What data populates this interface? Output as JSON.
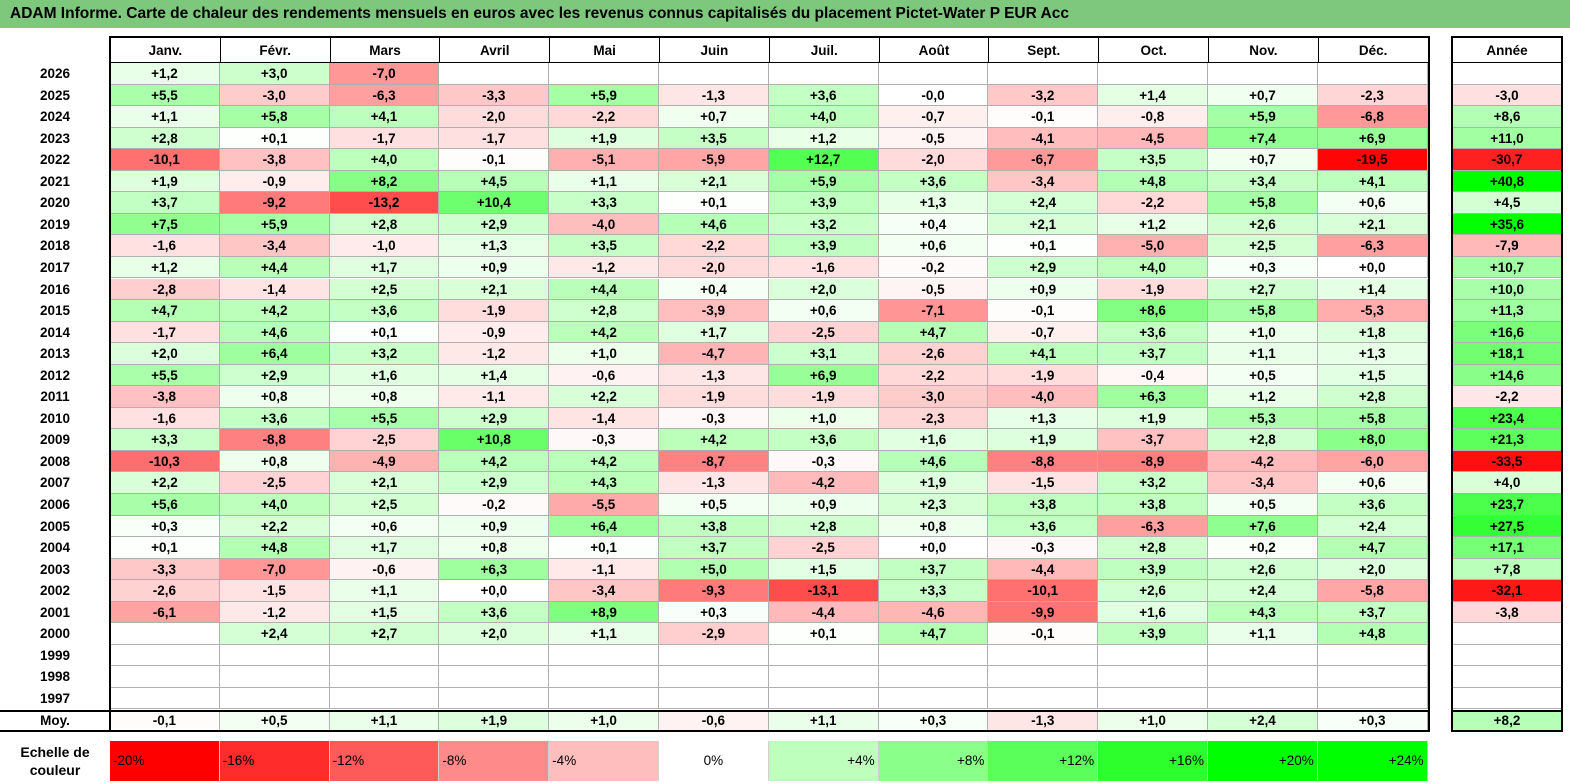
{
  "title": "ADAM Informe. Carte de chaleur des rendements mensuels en euros avec les revenus connus capitalisés du placement Pictet-Water P EUR Acc",
  "colors": {
    "title_bg": "#7dc87d",
    "negative_max": "#ff0000",
    "positive_max": "#00ff00",
    "neutral": "#ffffff"
  },
  "chart_data": {
    "type": "heatmap",
    "title": "ADAM Informe. Carte de chaleur des rendements mensuels en euros avec les revenus connus capitalisés du placement Pictet-Water P EUR Acc",
    "months": [
      "Janv.",
      "Févr.",
      "Mars",
      "Avril",
      "Mai",
      "Juin",
      "Juil.",
      "Août",
      "Sept.",
      "Oct.",
      "Nov.",
      "Déc."
    ],
    "annual_header": "Année",
    "avg_label": "Moy.",
    "scale_label": "Echelle de couleur",
    "rows": [
      {
        "year": "2026",
        "values": [
          "+1,2",
          "+3,0",
          "-7,0",
          "",
          "",
          "",
          "",
          "",
          "",
          "",
          "",
          ""
        ],
        "annual": ""
      },
      {
        "year": "2025",
        "values": [
          "+5,5",
          "-3,0",
          "-6,3",
          "-3,3",
          "+5,9",
          "-1,3",
          "+3,6",
          "-0,0",
          "-3,2",
          "+1,4",
          "+0,7",
          "-2,3"
        ],
        "annual": "-3,0"
      },
      {
        "year": "2024",
        "values": [
          "+1,1",
          "+5,8",
          "+4,1",
          "-2,0",
          "-2,2",
          "+0,7",
          "+4,0",
          "-0,7",
          "-0,1",
          "-0,8",
          "+5,9",
          "-6,8"
        ],
        "annual": "+8,6"
      },
      {
        "year": "2023",
        "values": [
          "+2,8",
          "+0,1",
          "-1,7",
          "-1,7",
          "+1,9",
          "+3,5",
          "+1,2",
          "-0,5",
          "-4,1",
          "-4,5",
          "+7,4",
          "+6,9"
        ],
        "annual": "+11,0"
      },
      {
        "year": "2022",
        "values": [
          "-10,1",
          "-3,8",
          "+4,0",
          "-0,1",
          "-5,1",
          "-5,9",
          "+12,7",
          "-2,0",
          "-6,7",
          "+3,5",
          "+0,7",
          "-19,5"
        ],
        "annual": "-30,7"
      },
      {
        "year": "2021",
        "values": [
          "+1,9",
          "-0,9",
          "+8,2",
          "+4,5",
          "+1,1",
          "+2,1",
          "+5,9",
          "+3,6",
          "-3,4",
          "+4,8",
          "+3,4",
          "+4,1"
        ],
        "annual": "+40,8"
      },
      {
        "year": "2020",
        "values": [
          "+3,7",
          "-9,2",
          "-13,2",
          "+10,4",
          "+3,3",
          "+0,1",
          "+3,9",
          "+1,3",
          "+2,4",
          "-2,2",
          "+5,8",
          "+0,6"
        ],
        "annual": "+4,5"
      },
      {
        "year": "2019",
        "values": [
          "+7,5",
          "+5,9",
          "+2,8",
          "+2,9",
          "-4,0",
          "+4,6",
          "+3,2",
          "+0,4",
          "+2,1",
          "+1,2",
          "+2,6",
          "+2,1"
        ],
        "annual": "+35,6"
      },
      {
        "year": "2018",
        "values": [
          "-1,6",
          "-3,4",
          "-1,0",
          "+1,3",
          "+3,5",
          "-2,2",
          "+3,9",
          "+0,6",
          "+0,1",
          "-5,0",
          "+2,5",
          "-6,3"
        ],
        "annual": "-7,9"
      },
      {
        "year": "2017",
        "values": [
          "+1,2",
          "+4,4",
          "+1,7",
          "+0,9",
          "-1,2",
          "-2,0",
          "-1,6",
          "-0,2",
          "+2,9",
          "+4,0",
          "+0,3",
          "+0,0"
        ],
        "annual": "+10,7"
      },
      {
        "year": "2016",
        "values": [
          "-2,8",
          "-1,4",
          "+2,5",
          "+2,1",
          "+4,4",
          "+0,4",
          "+2,0",
          "-0,5",
          "+0,9",
          "-1,9",
          "+2,7",
          "+1,4"
        ],
        "annual": "+10,0"
      },
      {
        "year": "2015",
        "values": [
          "+4,7",
          "+4,2",
          "+3,6",
          "-1,9",
          "+2,8",
          "-3,9",
          "+0,6",
          "-7,1",
          "-0,1",
          "+8,6",
          "+5,8",
          "-5,3"
        ],
        "annual": "+11,3"
      },
      {
        "year": "2014",
        "values": [
          "-1,7",
          "+4,6",
          "+0,1",
          "-0,9",
          "+4,2",
          "+1,7",
          "-2,5",
          "+4,7",
          "-0,7",
          "+3,6",
          "+1,0",
          "+1,8"
        ],
        "annual": "+16,6"
      },
      {
        "year": "2013",
        "values": [
          "+2,0",
          "+6,4",
          "+3,2",
          "-1,2",
          "+1,0",
          "-4,7",
          "+3,1",
          "-2,6",
          "+4,1",
          "+3,7",
          "+1,1",
          "+1,3"
        ],
        "annual": "+18,1"
      },
      {
        "year": "2012",
        "values": [
          "+5,5",
          "+2,9",
          "+1,6",
          "+1,4",
          "-0,6",
          "-1,3",
          "+6,9",
          "-2,2",
          "-1,9",
          "-0,4",
          "+0,5",
          "+1,5"
        ],
        "annual": "+14,6"
      },
      {
        "year": "2011",
        "values": [
          "-3,8",
          "+0,8",
          "+0,8",
          "-1,1",
          "+2,2",
          "-1,9",
          "-1,9",
          "-3,0",
          "-4,0",
          "+6,3",
          "+1,2",
          "+2,8"
        ],
        "annual": "-2,2"
      },
      {
        "year": "2010",
        "values": [
          "-1,6",
          "+3,6",
          "+5,5",
          "+2,9",
          "-1,4",
          "-0,3",
          "+1,0",
          "-2,3",
          "+1,3",
          "+1,9",
          "+5,3",
          "+5,8"
        ],
        "annual": "+23,4"
      },
      {
        "year": "2009",
        "values": [
          "+3,3",
          "-8,8",
          "-2,5",
          "+10,8",
          "-0,3",
          "+4,2",
          "+3,6",
          "+1,6",
          "+1,9",
          "-3,7",
          "+2,8",
          "+8,0"
        ],
        "annual": "+21,3"
      },
      {
        "year": "2008",
        "values": [
          "-10,3",
          "+0,8",
          "-4,9",
          "+4,2",
          "+4,2",
          "-8,7",
          "-0,3",
          "+4,6",
          "-8,8",
          "-8,9",
          "-4,2",
          "-6,0"
        ],
        "annual": "-33,5"
      },
      {
        "year": "2007",
        "values": [
          "+2,2",
          "-2,5",
          "+2,1",
          "+2,9",
          "+4,3",
          "-1,3",
          "-4,2",
          "+1,9",
          "-1,5",
          "+3,2",
          "-3,4",
          "+0,6"
        ],
        "annual": "+4,0"
      },
      {
        "year": "2006",
        "values": [
          "+5,6",
          "+4,0",
          "+2,5",
          "-0,2",
          "-5,5",
          "+0,5",
          "+0,9",
          "+2,3",
          "+3,8",
          "+3,8",
          "+0,5",
          "+3,6"
        ],
        "annual": "+23,7"
      },
      {
        "year": "2005",
        "values": [
          "+0,3",
          "+2,2",
          "+0,6",
          "+0,9",
          "+6,4",
          "+3,8",
          "+2,8",
          "+0,8",
          "+3,6",
          "-6,3",
          "+7,6",
          "+2,4"
        ],
        "annual": "+27,5"
      },
      {
        "year": "2004",
        "values": [
          "+0,1",
          "+4,8",
          "+1,7",
          "+0,8",
          "+0,1",
          "+3,7",
          "-2,5",
          "+0,0",
          "-0,3",
          "+2,8",
          "+0,2",
          "+4,7"
        ],
        "annual": "+17,1"
      },
      {
        "year": "2003",
        "values": [
          "-3,3",
          "-7,0",
          "-0,6",
          "+6,3",
          "-1,1",
          "+5,0",
          "+1,5",
          "+3,7",
          "-4,4",
          "+3,9",
          "+2,6",
          "+2,0"
        ],
        "annual": "+7,8"
      },
      {
        "year": "2002",
        "values": [
          "-2,6",
          "-1,5",
          "+1,1",
          "+0,0",
          "-3,4",
          "-9,3",
          "-13,1",
          "+3,3",
          "-10,1",
          "+2,6",
          "+2,4",
          "-5,8"
        ],
        "annual": "-32,1"
      },
      {
        "year": "2001",
        "values": [
          "-6,1",
          "-1,2",
          "+1,5",
          "+3,6",
          "+8,9",
          "+0,3",
          "-4,4",
          "-4,6",
          "-9,9",
          "+1,6",
          "+4,3",
          "+3,7"
        ],
        "annual": "-3,8"
      },
      {
        "year": "2000",
        "values": [
          "",
          "+2,4",
          "+2,7",
          "+2,0",
          "+1,1",
          "-2,9",
          "+0,1",
          "+4,7",
          "-0,1",
          "+3,9",
          "+1,1",
          "+4,8"
        ],
        "annual": ""
      },
      {
        "year": "1999",
        "values": [
          "",
          "",
          "",
          "",
          "",
          "",
          "",
          "",
          "",
          "",
          "",
          ""
        ],
        "annual": ""
      },
      {
        "year": "1998",
        "values": [
          "",
          "",
          "",
          "",
          "",
          "",
          "",
          "",
          "",
          "",
          "",
          ""
        ],
        "annual": ""
      },
      {
        "year": "1997",
        "values": [
          "",
          "",
          "",
          "",
          "",
          "",
          "",
          "",
          "",
          "",
          "",
          ""
        ],
        "annual": ""
      }
    ],
    "averages": [
      "-0,1",
      "+0,5",
      "+1,1",
      "+1,9",
      "+1,0",
      "-0,6",
      "+1,1",
      "+0,3",
      "-1,3",
      "+1,0",
      "+2,4",
      "+0,3"
    ],
    "average_annual": "+8,2",
    "color_scale": [
      "-20%",
      "-16%",
      "-12%",
      "-8%",
      "-4%",
      "0%",
      "+4%",
      "+8%",
      "+12%",
      "+16%",
      "+20%",
      "+24%"
    ]
  }
}
